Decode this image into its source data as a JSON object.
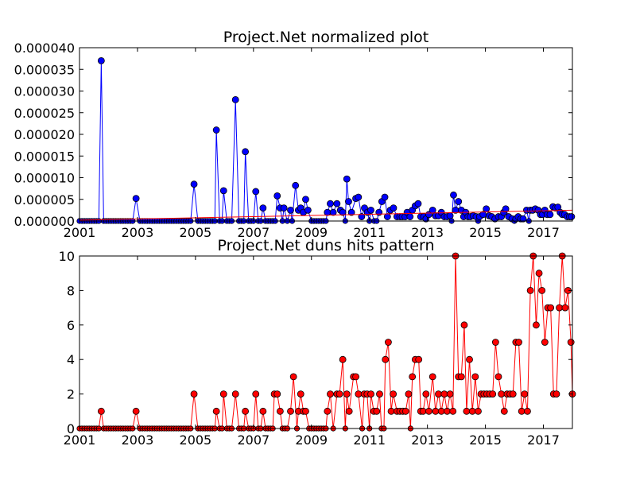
{
  "chart_data": [
    {
      "type": "line",
      "title": "Project.Net normalized plot",
      "xlabel": "",
      "ylabel": "",
      "xlim": [
        2001.0,
        2018.0
      ],
      "ylim": [
        0,
        4e-05
      ],
      "xticks": [
        "2001",
        "2003",
        "2005",
        "2007",
        "2009",
        "2011",
        "2013",
        "2015",
        "2017"
      ],
      "yticks": [
        "0.000000",
        "0.000005",
        "0.000010",
        "0.000015",
        "0.000020",
        "0.000025",
        "0.000030",
        "0.000035",
        "0.000040"
      ],
      "grid": false,
      "series": [
        {
          "color": "#0000ff",
          "marker": "circle",
          "x": [
            2001.75,
            2002.95,
            2004.95,
            2005.72,
            2005.97,
            2006.38,
            2006.72,
            2007.08,
            2007.33,
            2007.82,
            2007.92,
            2008.05,
            2008.28,
            2008.45,
            2008.55,
            2008.63,
            2008.72,
            2008.8,
            2008.88,
            2009.55,
            2009.65,
            2009.75,
            2009.88,
            2010.0,
            2010.08,
            2010.22,
            2010.28,
            2010.38,
            2010.53,
            2010.62,
            2010.73,
            2010.83,
            2010.93,
            2011.05,
            2011.33,
            2011.43,
            2011.53,
            2011.62,
            2011.72,
            2011.83,
            2011.95,
            2012.05,
            2012.13,
            2012.23,
            2012.3,
            2012.4,
            2012.48,
            2012.58,
            2012.68,
            2012.77,
            2012.87,
            2012.95,
            2013.05,
            2013.18,
            2013.28,
            2013.38,
            2013.48,
            2013.58,
            2013.68,
            2013.78,
            2013.9,
            2013.97,
            2014.07,
            2014.17,
            2014.25,
            2014.32,
            2014.4,
            2014.48,
            2014.58,
            2014.68,
            2014.8,
            2014.92,
            2015.03,
            2015.13,
            2015.22,
            2015.33,
            2015.45,
            2015.55,
            2015.63,
            2015.7,
            2015.8,
            2015.92,
            2016.05,
            2016.13,
            2016.22,
            2016.3,
            2016.42,
            2016.55,
            2016.63,
            2016.72,
            2016.82,
            2016.9,
            2016.97,
            2017.05,
            2017.13,
            2017.23,
            2017.33,
            2017.42,
            2017.5,
            2017.58,
            2017.65,
            2017.73,
            2017.82,
            2017.9,
            2017.97
          ],
          "values": [
            3.7e-05,
            5.2e-06,
            8.5e-06,
            2.1e-05,
            7e-06,
            2.8e-05,
            1.6e-05,
            6.8e-06,
            3e-06,
            5.8e-06,
            3e-06,
            3e-06,
            2.5e-06,
            8.2e-06,
            2.5e-06,
            3e-06,
            2e-06,
            5e-06,
            2.5e-06,
            2e-06,
            4e-06,
            2e-06,
            4e-06,
            2.5e-06,
            2e-06,
            9.7e-06,
            4.5e-06,
            2e-06,
            5.2e-06,
            5.5e-06,
            1e-06,
            3e-06,
            2e-06,
            2.5e-06,
            2e-06,
            4.5e-06,
            5.5e-06,
            1e-06,
            2.5e-06,
            3e-06,
            1e-06,
            1e-06,
            1e-06,
            1e-06,
            2e-06,
            1e-06,
            2.5e-06,
            3.5e-06,
            4e-06,
            1e-06,
            1e-06,
            5e-07,
            1.5e-06,
            2.5e-06,
            1.2e-06,
            1.2e-06,
            2e-06,
            1e-06,
            1e-06,
            1.2e-06,
            6e-06,
            2.5e-06,
            4.5e-06,
            2.5e-06,
            1e-06,
            2e-06,
            1e-06,
            1e-06,
            1.2e-06,
            1e-06,
            1e-06,
            1.5e-06,
            2.8e-06,
            1.2e-06,
            1e-06,
            5e-07,
            1e-06,
            1e-06,
            2e-06,
            2.8e-06,
            1e-06,
            5e-07,
            5e-07,
            1e-06,
            5e-07,
            5e-07,
            2.5e-06,
            2.5e-06,
            2.5e-06,
            2.8e-06,
            2.5e-06,
            1.5e-06,
            1.5e-06,
            2.5e-06,
            1.5e-06,
            1.5e-06,
            3.3e-06,
            3e-06,
            3.2e-06,
            2e-06,
            1.5e-06,
            1.5e-06,
            1e-06,
            1e-06,
            1e-06
          ]
        },
        {
          "color": "#ff0000",
          "marker": "none",
          "x": [
            2001.0,
            2018.0
          ],
          "values": [
            2e-07,
            2.5e-06
          ]
        }
      ]
    },
    {
      "type": "line",
      "title": "Project.Net duns hits pattern",
      "xlabel": "",
      "ylabel": "",
      "xlim": [
        2001.0,
        2018.0
      ],
      "ylim": [
        0,
        10
      ],
      "xticks": [
        "2001",
        "2003",
        "2005",
        "2007",
        "2009",
        "2011",
        "2013",
        "2015",
        "2017"
      ],
      "yticks": [
        "0",
        "2",
        "4",
        "6",
        "8",
        "10"
      ],
      "grid": false,
      "series": [
        {
          "color": "#ff0000",
          "marker": "circle",
          "x": [
            2001.75,
            2002.95,
            2004.95,
            2005.72,
            2005.97,
            2006.38,
            2006.72,
            2007.08,
            2007.33,
            2007.72,
            2007.82,
            2007.92,
            2008.28,
            2008.38,
            2008.55,
            2008.63,
            2008.72,
            2008.8,
            2009.55,
            2009.65,
            2009.88,
            2009.97,
            2010.08,
            2010.22,
            2010.3,
            2010.45,
            2010.53,
            2010.62,
            2010.82,
            2010.92,
            2011.05,
            2011.15,
            2011.25,
            2011.35,
            2011.55,
            2011.65,
            2011.75,
            2011.82,
            2011.95,
            2012.05,
            2012.15,
            2012.25,
            2012.35,
            2012.48,
            2012.58,
            2012.7,
            2012.77,
            2012.85,
            2012.95,
            2013.05,
            2013.18,
            2013.28,
            2013.38,
            2013.48,
            2013.58,
            2013.68,
            2013.78,
            2013.88,
            2013.97,
            2014.07,
            2014.17,
            2014.27,
            2014.35,
            2014.45,
            2014.55,
            2014.65,
            2014.75,
            2014.85,
            2014.95,
            2015.05,
            2015.15,
            2015.25,
            2015.35,
            2015.45,
            2015.55,
            2015.65,
            2015.75,
            2015.85,
            2015.95,
            2016.05,
            2016.15,
            2016.25,
            2016.35,
            2016.45,
            2016.55,
            2016.65,
            2016.75,
            2016.85,
            2016.95,
            2017.05,
            2017.15,
            2017.25,
            2017.35,
            2017.45,
            2017.55,
            2017.65,
            2017.75,
            2017.85,
            2017.95,
            2018.0
          ],
          "values": [
            1,
            1,
            2,
            1,
            2,
            2,
            1,
            2,
            1,
            2,
            2,
            1,
            1,
            3,
            1,
            2,
            1,
            1,
            1,
            2,
            2,
            2,
            4,
            2,
            1,
            3,
            3,
            2,
            2,
            2,
            2,
            1,
            1,
            2,
            4,
            5,
            1,
            2,
            1,
            1,
            1,
            1,
            2,
            3,
            4,
            4,
            1,
            1,
            2,
            1,
            3,
            1,
            2,
            1,
            2,
            1,
            2,
            1,
            10,
            3,
            3,
            6,
            1,
            4,
            1,
            3,
            1,
            2,
            2,
            2,
            2,
            2,
            5,
            3,
            2,
            1,
            2,
            2,
            2,
            5,
            5,
            1,
            2,
            1,
            8,
            10,
            6,
            9,
            8,
            5,
            7,
            7,
            2,
            2,
            7,
            10,
            7,
            8,
            5,
            2
          ]
        }
      ]
    }
  ]
}
